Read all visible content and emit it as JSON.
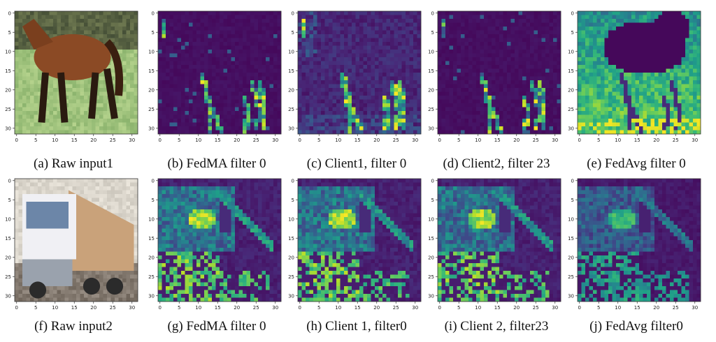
{
  "figure": {
    "colormap": "viridis",
    "grid_size": 32,
    "ticks": [
      "0",
      "5",
      "10",
      "15",
      "20",
      "25",
      "30"
    ],
    "rows": [
      {
        "panels": [
          {
            "id": "a",
            "kind": "photo",
            "subject": "horse",
            "caption": "(a) Raw input1"
          },
          {
            "id": "b",
            "kind": "activation",
            "pattern": "sparse-legs",
            "caption": "(b) FedMA filter 0"
          },
          {
            "id": "c",
            "kind": "activation",
            "pattern": "legs-noisy",
            "caption": "(c) Client1, filter 0"
          },
          {
            "id": "d",
            "kind": "activation",
            "pattern": "sparse-legs",
            "caption": "(d) Client2, filter 23"
          },
          {
            "id": "e",
            "kind": "activation",
            "pattern": "inverted-horse",
            "caption": "(e) FedAvg filter 0"
          }
        ]
      },
      {
        "panels": [
          {
            "id": "f",
            "kind": "photo",
            "subject": "truck",
            "caption": "(f) Raw input2"
          },
          {
            "id": "g",
            "kind": "activation",
            "pattern": "truck",
            "caption": "(g) FedMA filter 0"
          },
          {
            "id": "h",
            "kind": "activation",
            "pattern": "truck",
            "caption": "(h) Client 1, filter0"
          },
          {
            "id": "i",
            "kind": "activation",
            "pattern": "truck",
            "caption": "(i) Client 2, filter23"
          },
          {
            "id": "j",
            "kind": "activation",
            "pattern": "truck-weak",
            "caption": "(j) FedAvg filter0"
          }
        ]
      }
    ]
  }
}
